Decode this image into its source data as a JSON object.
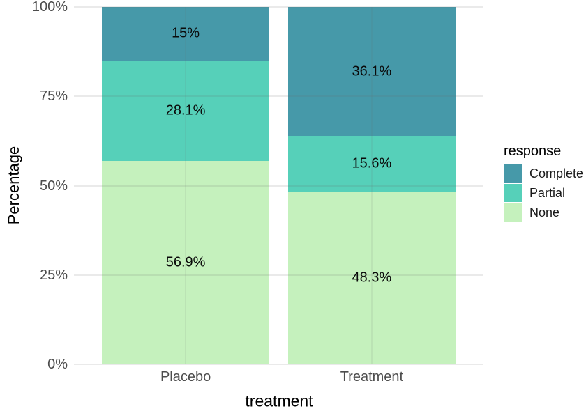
{
  "chart_data": {
    "type": "bar",
    "stacked": true,
    "orientation": "vertical",
    "xlabel": "treatment",
    "ylabel": "Percentage",
    "categories": [
      "Placebo",
      "Treatment"
    ],
    "series": [
      {
        "name": "Complete",
        "color": "#4699a9",
        "values": [
          15,
          36.1
        ],
        "labels": [
          "15%",
          "36.1%"
        ]
      },
      {
        "name": "Partial",
        "color": "#56d0b9",
        "values": [
          28.1,
          15.6
        ],
        "labels": [
          "28.1%",
          "15.6%"
        ]
      },
      {
        "name": "None",
        "color": "#c5f1bd",
        "values": [
          56.9,
          48.3
        ],
        "labels": [
          "56.9%",
          "48.3%"
        ]
      }
    ],
    "stack_order_top_to_bottom": [
      "Complete",
      "Partial",
      "None"
    ],
    "y_ticks": [
      {
        "label": "0%",
        "value": 0
      },
      {
        "label": "25%",
        "value": 25
      },
      {
        "label": "50%",
        "value": 50
      },
      {
        "label": "75%",
        "value": 75
      },
      {
        "label": "100%",
        "value": 100
      }
    ],
    "ylim": [
      0,
      100
    ],
    "grid": true,
    "legend": {
      "title": "response",
      "position": "right",
      "items": [
        "Complete",
        "Partial",
        "None"
      ]
    }
  },
  "colors": {
    "background": "#ffffff",
    "grid": "#ebebeb",
    "axis_text": "#4d4d4d",
    "axis_title_text": "#000000",
    "bar_label_text": "#0a0a0a"
  }
}
